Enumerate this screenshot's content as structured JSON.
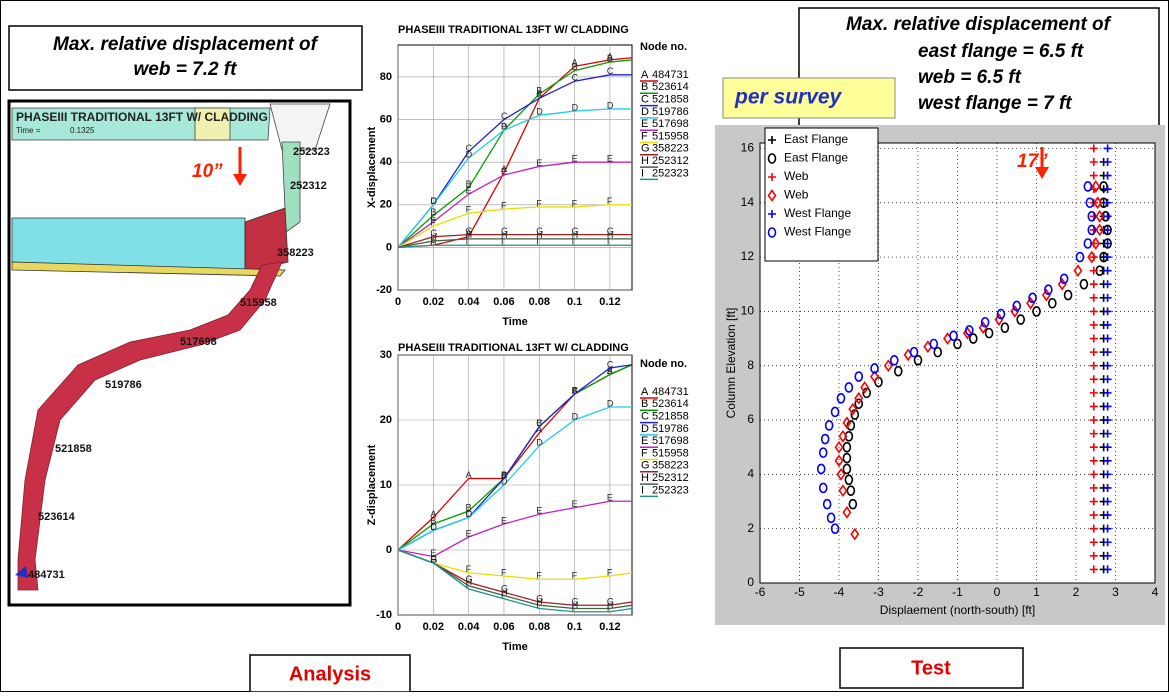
{
  "callouts": {
    "analysis_note": [
      "Max. relative displacement of",
      "web = 7.2 ft"
    ],
    "test_note": [
      "Max. relative displacement of",
      "east flange = 6.5 ft",
      "web = 6.5 ft",
      "west flange = 7 ft"
    ],
    "per_survey": "per survey",
    "analysis_label": "Analysis",
    "test_label": "Test"
  },
  "model_view": {
    "title": "PHASEIII TRADITIONAL 13FT W/ CLADDING",
    "time_label": "Time =",
    "time_value": "0.1325",
    "annotation": "10”",
    "nodes": [
      "252323",
      "252312",
      "358223",
      "515958",
      "517698",
      "519786",
      "521858",
      "523614",
      "484731"
    ]
  },
  "chart_data": [
    {
      "type": "line",
      "title": "PHASEIII TRADITIONAL 13FT W/ CLADDING",
      "xlabel": "Time",
      "ylabel": "X-displacement",
      "legend_title": "Node no.",
      "x": [
        0,
        0.02,
        0.04,
        0.06,
        0.08,
        0.1,
        0.12,
        0.1325
      ],
      "xlim": [
        0,
        0.1325
      ],
      "xticks": [
        0,
        0.02,
        0.04,
        0.06,
        0.08,
        0.1,
        0.12
      ],
      "ylim": [
        -20,
        95
      ],
      "yticks": [
        -20,
        0,
        20,
        40,
        60,
        80
      ],
      "grid": true,
      "series": [
        {
          "letter": "A",
          "name": "484731",
          "color": "#e00000",
          "values": [
            0,
            1,
            5,
            35,
            70,
            85,
            88,
            89
          ]
        },
        {
          "letter": "B",
          "name": "523614",
          "color": "#00a000",
          "values": [
            0,
            15,
            28,
            55,
            72,
            83,
            87,
            88
          ]
        },
        {
          "letter": "C",
          "name": "521858",
          "color": "#2020d0",
          "values": [
            0,
            20,
            45,
            60,
            70,
            78,
            81,
            81
          ]
        },
        {
          "letter": "D",
          "name": "519786",
          "color": "#20d0e0",
          "values": [
            0,
            20,
            42,
            55,
            62,
            64,
            65,
            65
          ]
        },
        {
          "letter": "E",
          "name": "517698",
          "color": "#c020c0",
          "values": [
            0,
            12,
            25,
            34,
            38,
            40,
            40,
            40
          ]
        },
        {
          "letter": "F",
          "name": "515958",
          "color": "#e8e000",
          "values": [
            0,
            10,
            16,
            18,
            19,
            19,
            20,
            20
          ]
        },
        {
          "letter": "G",
          "name": "358223",
          "color": "#a02020",
          "values": [
            0,
            5,
            6,
            6,
            6,
            6,
            6,
            6
          ]
        },
        {
          "letter": "H",
          "name": "252312",
          "color": "#406040",
          "values": [
            0,
            3,
            4,
            4,
            4,
            4,
            4,
            4
          ]
        },
        {
          "letter": "I",
          "name": "252323",
          "color": "#209090",
          "values": [
            0,
            1,
            1,
            1,
            1,
            1,
            1,
            1
          ]
        }
      ]
    },
    {
      "type": "line",
      "title": "PHASEIII TRADITIONAL 13FT W/ CLADDING",
      "xlabel": "Time",
      "ylabel": "Z-displacement",
      "legend_title": "Node no.",
      "x": [
        0,
        0.02,
        0.04,
        0.06,
        0.08,
        0.1,
        0.12,
        0.1325
      ],
      "xlim": [
        0,
        0.1325
      ],
      "xticks": [
        0,
        0.02,
        0.04,
        0.06,
        0.08,
        0.1,
        0.12
      ],
      "ylim": [
        -10,
        30
      ],
      "yticks": [
        -10,
        0,
        10,
        20,
        30
      ],
      "grid": true,
      "series": [
        {
          "letter": "A",
          "name": "484731",
          "color": "#e00000",
          "values": [
            0,
            5,
            11,
            11,
            18,
            24,
            27,
            28.5
          ]
        },
        {
          "letter": "B",
          "name": "523614",
          "color": "#00a000",
          "values": [
            0,
            4,
            6,
            11,
            19,
            24,
            27,
            28.5
          ]
        },
        {
          "letter": "C",
          "name": "521858",
          "color": "#2020d0",
          "values": [
            0,
            3,
            5,
            11,
            19,
            24,
            28,
            28.5
          ]
        },
        {
          "letter": "D",
          "name": "519786",
          "color": "#20d0e0",
          "values": [
            0,
            3,
            5,
            10,
            16,
            20,
            22,
            22
          ]
        },
        {
          "letter": "E",
          "name": "517698",
          "color": "#c020c0",
          "values": [
            0,
            -1,
            2,
            4,
            5.5,
            6.5,
            7.5,
            7.5
          ]
        },
        {
          "letter": "F",
          "name": "515958",
          "color": "#e8e000",
          "values": [
            0,
            -2,
            -3.5,
            -4,
            -4.5,
            -4.5,
            -4,
            -3.5
          ]
        },
        {
          "letter": "G",
          "name": "358223",
          "color": "#a02020",
          "values": [
            0,
            -2,
            -5,
            -6.5,
            -8,
            -8.5,
            -8.5,
            -8
          ]
        },
        {
          "letter": "H",
          "name": "252312",
          "color": "#406040",
          "values": [
            0,
            -2,
            -5.5,
            -7,
            -8.5,
            -9,
            -9,
            -8.5
          ]
        },
        {
          "letter": "I",
          "name": "252323",
          "color": "#209090",
          "values": [
            0,
            -2,
            -6,
            -7.5,
            -9,
            -9.5,
            -9.5,
            -9
          ]
        }
      ]
    },
    {
      "type": "scatter",
      "xlabel": "Displaement (north-south) [ft]",
      "ylabel": "Column Elevation [ft]",
      "annotation": "17”",
      "xlim": [
        -6,
        4
      ],
      "xticks": [
        -6,
        -5,
        -4,
        -3,
        -2,
        -1,
        0,
        1,
        2,
        3,
        4
      ],
      "ylim": [
        0,
        16.2
      ],
      "yticks": [
        0,
        2,
        4,
        6,
        8,
        10,
        12,
        14,
        16
      ],
      "grid": true,
      "legend": "upper left",
      "series": [
        {
          "name": "East Flange",
          "color": "#000000",
          "marker": "plus",
          "x": [
            2.7,
            2.7,
            2.7,
            2.7,
            2.7,
            2.7,
            2.7,
            2.7,
            2.7,
            2.7,
            2.7,
            2.7,
            2.7,
            2.7,
            2.7,
            2.7,
            2.7,
            2.7,
            2.7,
            2.7,
            2.7,
            2.7,
            2.7,
            2.7,
            2.7,
            2.7,
            2.7,
            2.7,
            2.7,
            2.7,
            2.7
          ],
          "y": [
            0.5,
            1,
            1.5,
            2,
            2.5,
            3,
            3.5,
            4,
            4.5,
            5,
            5.5,
            6,
            6.5,
            7,
            7.5,
            8,
            8.5,
            9,
            9.5,
            10,
            10.5,
            11,
            11.5,
            12,
            12.5,
            13,
            13.5,
            14,
            14.5,
            15,
            15.5
          ]
        },
        {
          "name": "East Flange",
          "color": "#000000",
          "marker": "circle",
          "x": [
            2.7,
            2.7,
            2.75,
            2.8,
            2.8,
            2.7,
            2.6,
            2.2,
            1.8,
            1.4,
            1,
            0.6,
            0.2,
            -0.2,
            -0.6,
            -1,
            -1.5,
            -2,
            -2.5,
            -3,
            -3.3,
            -3.5,
            -3.6,
            -3.7,
            -3.75,
            -3.8,
            -3.8,
            -3.8,
            -3.75,
            -3.7,
            -3.65
          ],
          "y": [
            14.6,
            14,
            13.5,
            13,
            12.5,
            12,
            11.5,
            11,
            10.6,
            10.3,
            10,
            9.7,
            9.4,
            9.2,
            9,
            8.8,
            8.5,
            8.2,
            7.8,
            7.4,
            7,
            6.6,
            6.2,
            5.8,
            5.4,
            5,
            4.6,
            4.2,
            3.8,
            3.4,
            2.9
          ]
        },
        {
          "name": "Web",
          "color": "#ff0000",
          "marker": "plus",
          "x": [
            2.45,
            2.45,
            2.45,
            2.45,
            2.45,
            2.45,
            2.45,
            2.45,
            2.45,
            2.45,
            2.45,
            2.45,
            2.45,
            2.45,
            2.45,
            2.45,
            2.45,
            2.45,
            2.45,
            2.45,
            2.45,
            2.45,
            2.45,
            2.45,
            2.45,
            2.45,
            2.45,
            2.45,
            2.45,
            2.45,
            2.45,
            2.45
          ],
          "y": [
            0.5,
            1,
            1.5,
            2,
            2.5,
            3,
            3.5,
            4,
            4.5,
            5,
            5.5,
            6,
            6.5,
            7,
            7.5,
            8,
            8.5,
            9,
            9.5,
            10,
            10.5,
            11,
            11.5,
            12,
            12.5,
            13,
            13.5,
            14,
            14.5,
            15,
            15.5,
            16
          ]
        },
        {
          "name": "Web",
          "color": "#ff0000",
          "marker": "diamond",
          "x": [
            2.5,
            2.55,
            2.6,
            2.6,
            2.5,
            2.4,
            2.05,
            1.65,
            1.25,
            0.85,
            0.45,
            0.05,
            -0.35,
            -0.75,
            -1.25,
            -1.75,
            -2.25,
            -2.75,
            -3.1,
            -3.35,
            -3.5,
            -3.65,
            -3.8,
            -3.9,
            -4,
            -4,
            -3.95,
            -3.9,
            -3.8,
            -3.6
          ],
          "y": [
            14.6,
            14,
            13.5,
            13,
            12.5,
            12,
            11.5,
            11,
            10.6,
            10.3,
            10,
            9.7,
            9.4,
            9.2,
            9,
            8.7,
            8.4,
            8,
            7.6,
            7.2,
            6.8,
            6.4,
            5.9,
            5.4,
            5,
            4.5,
            4,
            3.4,
            2.6,
            1.8
          ]
        },
        {
          "name": "West Flange",
          "color": "#0000ff",
          "marker": "plus",
          "x": [
            2.8,
            2.8,
            2.8,
            2.8,
            2.8,
            2.8,
            2.8,
            2.8,
            2.8,
            2.8,
            2.8,
            2.8,
            2.8,
            2.8,
            2.8,
            2.8,
            2.8,
            2.8,
            2.8,
            2.8,
            2.8,
            2.8,
            2.8,
            2.8,
            2.8,
            2.8,
            2.8,
            2.8,
            2.8,
            2.8,
            2.8,
            2.8
          ],
          "y": [
            0.5,
            1,
            1.5,
            2,
            2.5,
            3,
            3.5,
            4,
            4.5,
            5,
            5.5,
            6,
            6.5,
            7,
            7.5,
            8,
            8.5,
            9,
            9.5,
            10,
            10.5,
            11,
            11.5,
            12,
            12.5,
            13,
            13.5,
            14,
            14.5,
            15,
            15.5,
            16
          ]
        },
        {
          "name": "West Flange",
          "color": "#0000ff",
          "marker": "circle",
          "x": [
            2.3,
            2.35,
            2.4,
            2.4,
            2.3,
            2.1,
            1.7,
            1.3,
            0.9,
            0.5,
            0.1,
            -0.3,
            -0.7,
            -1.1,
            -1.6,
            -2.1,
            -2.6,
            -3.1,
            -3.5,
            -3.75,
            -3.95,
            -4.1,
            -4.25,
            -4.35,
            -4.4,
            -4.45,
            -4.4,
            -4.3,
            -4.2,
            -4.1
          ],
          "y": [
            14.6,
            14,
            13.5,
            13,
            12.5,
            12,
            11.2,
            10.8,
            10.5,
            10.2,
            9.9,
            9.6,
            9.3,
            9.1,
            8.8,
            8.5,
            8.2,
            7.9,
            7.6,
            7.2,
            6.8,
            6.3,
            5.8,
            5.3,
            4.8,
            4.2,
            3.5,
            2.9,
            2.4,
            2
          ]
        }
      ]
    }
  ]
}
